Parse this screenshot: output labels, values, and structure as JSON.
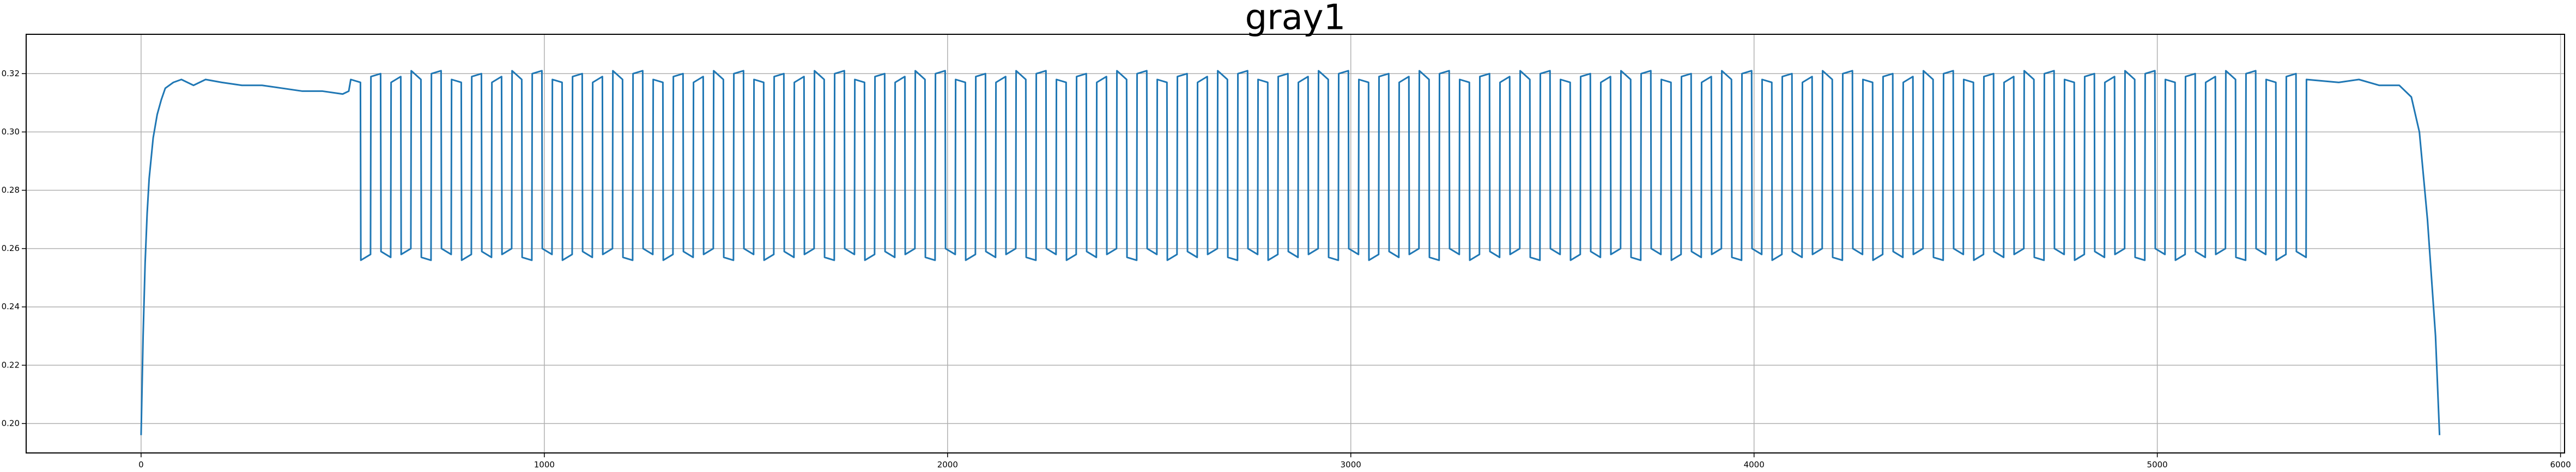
{
  "chart_data": {
    "type": "line",
    "title": "gray1",
    "xlim": [
      -285,
      6010
    ],
    "ylim": [
      0.1899,
      0.3335
    ],
    "xticks": [
      0,
      1000,
      2000,
      3000,
      4000,
      5000,
      6000
    ],
    "yticks": [
      {
        "value": 0.2,
        "label": "0.20"
      },
      {
        "value": 0.22,
        "label": "0.22"
      },
      {
        "value": 0.24,
        "label": "0.24"
      },
      {
        "value": 0.26,
        "label": "0.26"
      },
      {
        "value": 0.28,
        "label": "0.28"
      },
      {
        "value": 0.3,
        "label": "0.30"
      },
      {
        "value": 0.32,
        "label": "0.32"
      }
    ],
    "grid": true,
    "x": [
      0,
      5,
      10,
      15,
      20,
      30,
      40,
      50,
      60,
      80,
      100,
      130,
      160,
      200,
      250,
      300,
      350,
      400,
      450,
      500,
      515,
      520,
      544,
      545,
      569,
      570,
      594,
      595,
      619,
      620,
      644,
      645,
      669,
      670,
      694,
      695,
      719,
      720,
      744,
      745,
      769,
      770,
      794,
      795,
      819,
      820,
      844,
      845,
      869,
      870,
      894,
      895,
      919,
      920,
      944,
      945,
      969,
      970,
      994,
      995,
      1019,
      1020,
      1044,
      1045,
      1069,
      1070,
      1094,
      1095,
      1119,
      1120,
      1144,
      1145,
      1169,
      1170,
      1194,
      1195,
      1219,
      1220,
      1244,
      1245,
      1269,
      1270,
      1294,
      1295,
      1319,
      1320,
      1344,
      1345,
      1369,
      1370,
      1394,
      1395,
      1419,
      1420,
      1444,
      1445,
      1469,
      1470,
      1494,
      1495,
      1519,
      1520,
      1544,
      1545,
      1569,
      1570,
      1594,
      1595,
      1619,
      1620,
      1644,
      1645,
      1669,
      1670,
      1694,
      1695,
      1719,
      1720,
      1744,
      1745,
      1769,
      1770,
      1794,
      1795,
      1819,
      1820,
      1844,
      1845,
      1869,
      1870,
      1894,
      1895,
      1919,
      1920,
      1944,
      1945,
      1969,
      1970,
      1994,
      1995,
      2019,
      2020,
      2044,
      2045,
      2069,
      2070,
      2094,
      2095,
      2119,
      2120,
      2144,
      2145,
      2169,
      2170,
      2194,
      2195,
      2219,
      2220,
      2244,
      2245,
      2269,
      2270,
      2294,
      2295,
      2319,
      2320,
      2344,
      2345,
      2369,
      2370,
      2394,
      2395,
      2419,
      2420,
      2444,
      2445,
      2469,
      2470,
      2494,
      2495,
      2519,
      2520,
      2544,
      2545,
      2569,
      2570,
      2594,
      2595,
      2619,
      2620,
      2644,
      2645,
      2669,
      2670,
      2694,
      2695,
      2719,
      2720,
      2744,
      2745,
      2769,
      2770,
      2794,
      2795,
      2819,
      2820,
      2844,
      2845,
      2869,
      2870,
      2894,
      2895,
      2919,
      2920,
      2944,
      2945,
      2969,
      2970,
      2994,
      2995,
      3019,
      3020,
      3044,
      3045,
      3069,
      3070,
      3094,
      3095,
      3119,
      3120,
      3144,
      3145,
      3169,
      3170,
      3194,
      3195,
      3219,
      3220,
      3244,
      3245,
      3269,
      3270,
      3294,
      3295,
      3319,
      3320,
      3344,
      3345,
      3369,
      3370,
      3394,
      3395,
      3419,
      3420,
      3444,
      3445,
      3469,
      3470,
      3494,
      3495,
      3519,
      3520,
      3544,
      3545,
      3569,
      3570,
      3594,
      3595,
      3619,
      3620,
      3644,
      3645,
      3669,
      3670,
      3694,
      3695,
      3719,
      3720,
      3744,
      3745,
      3769,
      3770,
      3794,
      3795,
      3819,
      3820,
      3844,
      3845,
      3869,
      3870,
      3894,
      3895,
      3919,
      3920,
      3944,
      3945,
      3969,
      3970,
      3994,
      3995,
      4019,
      4020,
      4044,
      4045,
      4069,
      4070,
      4094,
      4095,
      4119,
      4120,
      4144,
      4145,
      4169,
      4170,
      4194,
      4195,
      4219,
      4220,
      4244,
      4245,
      4269,
      4270,
      4294,
      4295,
      4319,
      4320,
      4344,
      4345,
      4369,
      4370,
      4394,
      4395,
      4419,
      4420,
      4444,
      4445,
      4469,
      4470,
      4494,
      4495,
      4519,
      4520,
      4544,
      4545,
      4569,
      4570,
      4594,
      4595,
      4619,
      4620,
      4644,
      4645,
      4669,
      4670,
      4694,
      4695,
      4719,
      4720,
      4744,
      4745,
      4769,
      4770,
      4794,
      4795,
      4819,
      4820,
      4844,
      4845,
      4869,
      4870,
      4894,
      4895,
      4919,
      4920,
      4944,
      4945,
      4969,
      4970,
      4994,
      4995,
      5019,
      5020,
      5044,
      5045,
      5069,
      5070,
      5094,
      5095,
      5119,
      5120,
      5144,
      5145,
      5169,
      5170,
      5194,
      5195,
      5219,
      5220,
      5244,
      5245,
      5269,
      5270,
      5294,
      5295,
      5319,
      5320,
      5344,
      5345,
      5369,
      5370,
      5450,
      5500,
      5550,
      5600,
      5630,
      5650,
      5670,
      5690,
      5700
    ],
    "series": [
      {
        "color": "#1f77b4",
        "values": [
          0.196,
          0.23,
          0.255,
          0.272,
          0.284,
          0.298,
          0.306,
          0.311,
          0.315,
          0.317,
          0.318,
          0.316,
          0.318,
          0.317,
          0.316,
          0.316,
          0.315,
          0.314,
          0.314,
          0.313,
          0.314,
          0.318,
          0.317,
          0.256,
          0.258,
          0.319,
          0.32,
          0.259,
          0.257,
          0.317,
          0.319,
          0.258,
          0.26,
          0.321,
          0.318,
          0.257,
          0.256,
          0.32,
          0.321,
          0.26,
          0.258,
          0.318,
          0.317,
          0.256,
          0.258,
          0.319,
          0.32,
          0.259,
          0.257,
          0.317,
          0.319,
          0.258,
          0.26,
          0.321,
          0.318,
          0.257,
          0.256,
          0.32,
          0.321,
          0.26,
          0.258,
          0.318,
          0.317,
          0.256,
          0.258,
          0.319,
          0.32,
          0.259,
          0.257,
          0.317,
          0.319,
          0.258,
          0.26,
          0.321,
          0.318,
          0.257,
          0.256,
          0.32,
          0.321,
          0.26,
          0.258,
          0.318,
          0.317,
          0.256,
          0.258,
          0.319,
          0.32,
          0.259,
          0.257,
          0.317,
          0.319,
          0.258,
          0.26,
          0.321,
          0.318,
          0.257,
          0.256,
          0.32,
          0.321,
          0.26,
          0.258,
          0.318,
          0.317,
          0.256,
          0.258,
          0.319,
          0.32,
          0.259,
          0.257,
          0.317,
          0.319,
          0.258,
          0.26,
          0.321,
          0.318,
          0.257,
          0.256,
          0.32,
          0.321,
          0.26,
          0.258,
          0.318,
          0.317,
          0.256,
          0.258,
          0.319,
          0.32,
          0.259,
          0.257,
          0.317,
          0.319,
          0.258,
          0.26,
          0.321,
          0.318,
          0.257,
          0.256,
          0.32,
          0.321,
          0.26,
          0.258,
          0.318,
          0.317,
          0.256,
          0.258,
          0.319,
          0.32,
          0.259,
          0.257,
          0.317,
          0.319,
          0.258,
          0.26,
          0.321,
          0.318,
          0.257,
          0.256,
          0.32,
          0.321,
          0.26,
          0.258,
          0.318,
          0.317,
          0.256,
          0.258,
          0.319,
          0.32,
          0.259,
          0.257,
          0.317,
          0.319,
          0.258,
          0.26,
          0.321,
          0.318,
          0.257,
          0.256,
          0.32,
          0.321,
          0.26,
          0.258,
          0.318,
          0.317,
          0.256,
          0.258,
          0.319,
          0.32,
          0.259,
          0.257,
          0.317,
          0.319,
          0.258,
          0.26,
          0.321,
          0.318,
          0.257,
          0.256,
          0.32,
          0.321,
          0.26,
          0.258,
          0.318,
          0.317,
          0.256,
          0.258,
          0.319,
          0.32,
          0.259,
          0.257,
          0.317,
          0.319,
          0.258,
          0.26,
          0.321,
          0.318,
          0.257,
          0.256,
          0.32,
          0.321,
          0.26,
          0.258,
          0.318,
          0.317,
          0.256,
          0.258,
          0.319,
          0.32,
          0.259,
          0.257,
          0.317,
          0.319,
          0.258,
          0.26,
          0.321,
          0.318,
          0.257,
          0.256,
          0.32,
          0.321,
          0.26,
          0.258,
          0.318,
          0.317,
          0.256,
          0.258,
          0.319,
          0.32,
          0.259,
          0.257,
          0.317,
          0.319,
          0.258,
          0.26,
          0.321,
          0.318,
          0.257,
          0.256,
          0.32,
          0.321,
          0.26,
          0.258,
          0.318,
          0.317,
          0.256,
          0.258,
          0.319,
          0.32,
          0.259,
          0.257,
          0.317,
          0.319,
          0.258,
          0.26,
          0.321,
          0.318,
          0.257,
          0.256,
          0.32,
          0.321,
          0.26,
          0.258,
          0.318,
          0.317,
          0.256,
          0.258,
          0.319,
          0.32,
          0.259,
          0.257,
          0.317,
          0.319,
          0.258,
          0.26,
          0.321,
          0.318,
          0.257,
          0.256,
          0.32,
          0.321,
          0.26,
          0.258,
          0.318,
          0.317,
          0.256,
          0.258,
          0.319,
          0.32,
          0.259,
          0.257,
          0.317,
          0.319,
          0.258,
          0.26,
          0.321,
          0.318,
          0.257,
          0.256,
          0.32,
          0.321,
          0.26,
          0.258,
          0.318,
          0.317,
          0.256,
          0.258,
          0.319,
          0.32,
          0.259,
          0.257,
          0.317,
          0.319,
          0.258,
          0.26,
          0.321,
          0.318,
          0.257,
          0.256,
          0.32,
          0.321,
          0.26,
          0.258,
          0.318,
          0.317,
          0.256,
          0.258,
          0.319,
          0.32,
          0.259,
          0.257,
          0.317,
          0.319,
          0.258,
          0.26,
          0.321,
          0.318,
          0.257,
          0.256,
          0.32,
          0.321,
          0.26,
          0.258,
          0.318,
          0.317,
          0.256,
          0.258,
          0.319,
          0.32,
          0.259,
          0.257,
          0.317,
          0.319,
          0.258,
          0.26,
          0.321,
          0.318,
          0.257,
          0.256,
          0.32,
          0.321,
          0.26,
          0.258,
          0.318,
          0.317,
          0.256,
          0.258,
          0.319,
          0.32,
          0.259,
          0.257,
          0.317,
          0.319,
          0.258,
          0.26,
          0.321,
          0.318,
          0.257,
          0.256,
          0.32,
          0.321,
          0.26,
          0.258,
          0.318,
          0.317,
          0.256,
          0.258,
          0.319,
          0.32,
          0.259,
          0.257,
          0.318,
          0.317,
          0.318,
          0.316,
          0.316,
          0.312,
          0.3,
          0.27,
          0.23,
          0.196
        ]
      }
    ]
  }
}
